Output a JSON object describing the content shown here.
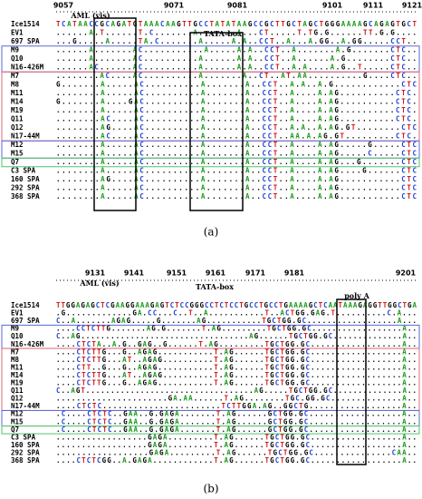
{
  "panels": [
    {
      "positions": [
        {
          "value": 9057,
          "x": 70
        },
        {
          "value": 9071,
          "x": 192
        },
        {
          "value": 9081,
          "x": 262
        },
        {
          "value": 9101,
          "x": 367
        },
        {
          "value": 9111,
          "x": 412
        },
        {
          "value": 9121,
          "x": 455
        }
      ],
      "annotations": [
        "AML (vis)",
        "TATA-box"
      ],
      "rows": [
        {
          "name": "Ice1514",
          "sequence": "TCATAACCGCAGATGTAAACAAGTTGCCTATATAAGCCGCTTGCTAGCTGGGAAAAGCAGAGTGCT"
        },
        {
          "name": "EV1",
          "sequence": "......A.T......T.C.......A.......A...CT.....T.TG.G......TT.G.G...."
        },
        {
          "name": "697 SPA",
          "sequence": "...G.....A.....TA.C.......A.....A.A..CCT..A...A.GG..A.GG.....CCT.."
        },
        {
          "name": "M9",
          "sequence": "......A.......AC...........A.....A.A..CCT..A.......A.G.......CTC.."
        },
        {
          "name": "Q10",
          "sequence": "......A.......AC..........A......A.A..CCT..A......A.G........CTC.."
        },
        {
          "name": "N16-426M",
          "sequence": "......AC......AC..........A......A.A..CCT..A.A....A.G..T.....CTC.."
        },
        {
          "name": "M7",
          "sequence": "........AC....AC..........A.......A..CT..AT.AA..........G....CTC.."
        },
        {
          "name": "M8",
          "sequence": "G.......A.....AC..........A.......A..CCT..A.A..A.G............CTC"
        },
        {
          "name": "M11",
          "sequence": "........A.....AC..........A.......A..CCT..A....A.AG..........CTC."
        },
        {
          "name": "M14",
          "sequence": "G.......A....GAC..........A.......A..CCT..A....A.AG..........CTC."
        },
        {
          "name": "M19",
          "sequence": "........A.....AC..........A.......A..CCT..A....A.AG..........CTC."
        },
        {
          "name": "Q11",
          "sequence": "........AC....AC..........A.......A..CCT..A....A.AG..........CTC."
        },
        {
          "name": "Q12",
          "sequence": "........AG....AC..........A.......A..CCT..A.A..A.AG.GT........CTC"
        },
        {
          "name": "N17-44M",
          "sequence": "........AC....AC..........A.......A..CCT..AA.A.AG.GT.........CTC."
        },
        {
          "name": "M12",
          "sequence": "........A.....AC..........A.......A..CCT..A....A.AG.....G.....CTC"
        },
        {
          "name": "M15",
          "sequence": "........A.....AC..........A.......A..CCT..A....A.AG.....C.....CTC"
        },
        {
          "name": "Q7",
          "sequence": "........A.....AC..........A.......A..CCT..A....A.AG...G.......CTC"
        },
        {
          "name": "C3 SPA",
          "sequence": "........A.....AC..........A.......A..CCT..A....A.AG....G......CTC"
        },
        {
          "name": "160 SPA",
          "sequence": "........AG....AC..........A.......A..CCT..A....A.AG...........CTC"
        },
        {
          "name": "292 SPA",
          "sequence": "........A.....AC..........A.......A..CCT..A....A.AG...........CTC"
        },
        {
          "name": "368 SPA",
          "sequence": "........A.....AC..........A.......A..CCT..A....A.AG...........CTC"
        }
      ],
      "caption": "(a)"
    },
    {
      "positions": [
        {
          "value": 9131,
          "x": 105
        },
        {
          "value": 9141,
          "x": 148
        },
        {
          "value": 9151,
          "x": 195
        },
        {
          "value": 9161,
          "x": 238
        },
        {
          "value": 9171,
          "x": 282
        },
        {
          "value": 9181,
          "x": 325
        },
        {
          "value": 9201,
          "x": 448
        }
      ],
      "annotations": [
        "AML (vis)",
        "TATA-box",
        "poly A"
      ],
      "rows": [
        {
          "name": "Ice1514",
          "sequence": "TTGGAGAGCTCGAAGGAAAGAGTCTCCGGGCCTCTCCTGCCTGCCTGAAAAGCTCAATAAAGAGGTTGGCTGA"
        },
        {
          "name": "EV1",
          "sequence": ".G.............GA.CC...C..T..A...........T..ACTGG.GAG.T..........C.A..."
        },
        {
          "name": "697 SPA",
          "sequence": "C..A.......AGAG.....G.......AG...........TGCTGG.GC..................A..."
        },
        {
          "name": "M9",
          "sequence": "....CCTCTTG.......AG.G.......T.AG.........TGCTGG.GC..................A.."
        },
        {
          "name": "Q10",
          "sequence": "C..AG..................................AG......TGCTGG.GC..............A.."
        },
        {
          "name": "N16-426M",
          "sequence": "....CTCTA..A.G..GAG..G......T.AG.........TGCTGG.GC..................A.."
        },
        {
          "name": "M7",
          "sequence": "....CTCTTG...G..AGAG...........T.AG......TGCTGG.GC..................A.."
        },
        {
          "name": "M8",
          "sequence": "....CTCTTG...AT..AGAG..........T.AG......TGCTGG.GC..................A.."
        },
        {
          "name": "M11",
          "sequence": "....CTT..G...G..AGAG...........T.AG......TGCTGG.GC..................A.."
        },
        {
          "name": "M14",
          "sequence": "....CTCTTG...AT..AGAG..........T.AG......TGCTGG.GC..................A.."
        },
        {
          "name": "M19",
          "sequence": "....CTCTTG...G..AGAG...........T.AG......TGCTGG.GC..................A.."
        },
        {
          "name": "Q11",
          "sequence": "C..AGT..................................AG.....TGCTGG.GC..............A.."
        },
        {
          "name": "Q12",
          "sequence": "......................GA.AA......T.AG........TGC.GG.GC..............A.."
        },
        {
          "name": "N17-44M",
          "sequence": "....CTCTC.......................TCTTGGA.AG..GGCTG..................A.."
        },
        {
          "name": "M12",
          "sequence": ".C....CTCTC..GAA..G.GAGA.......T.AG......GCTGG.GC..................A.."
        },
        {
          "name": "M15",
          "sequence": ".C....CTCTC..GAA..G.GAGA.......T.AG......GCTGG.GC..................A.."
        },
        {
          "name": "Q7",
          "sequence": ".C....CTCTC..GAA..G.GAGA.......T.AG......GCTGG.GC..................A.."
        },
        {
          "name": "C3 SPA",
          "sequence": "..................GAGA.........T.AG......TGCTGG.GC..................A.."
        },
        {
          "name": "160 SPA",
          "sequence": "..................GAGA.........T.AG......TGCTGG.GC..................A.."
        },
        {
          "name": "292 SPA",
          "sequence": "..................GAGA.........T.AG......TGCTGG.GC...............CAA.."
        },
        {
          "name": "368 SPA",
          "sequence": "....CTCTCGG..A.GAGA............T.AG......TGCTGG.GC..................A.."
        }
      ],
      "caption": "(b)"
    }
  ]
}
